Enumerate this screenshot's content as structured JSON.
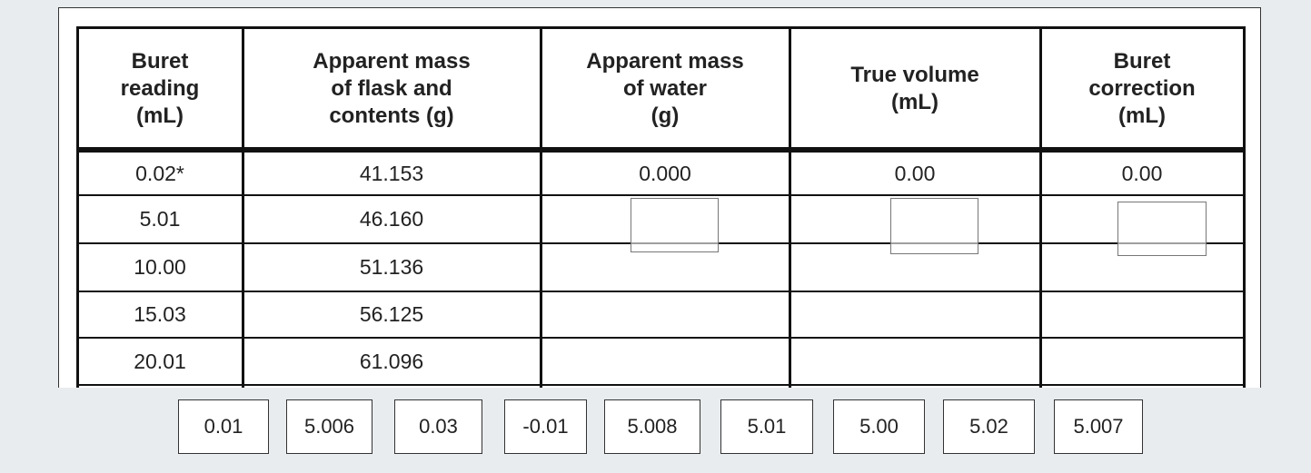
{
  "table": {
    "headers": [
      [
        "Buret",
        "reading",
        "(mL)"
      ],
      [
        "Apparent mass",
        "of flask and",
        "contents  (g)"
      ],
      [
        "Apparent mass",
        "of water",
        "(g)"
      ],
      [
        "True volume",
        "(mL)"
      ],
      [
        "Buret",
        "correction",
        "(mL)"
      ]
    ],
    "rows": [
      [
        "0.02*",
        "41.153",
        "0.000",
        "0.00",
        "0.00"
      ],
      [
        "5.01",
        "46.160"
      ],
      [
        "10.00",
        "51.136"
      ],
      [
        "15.03",
        "56.125"
      ],
      [
        "20.01",
        "61.096"
      ]
    ]
  },
  "choices": [
    "0.01",
    "5.006",
    "0.03",
    "-0.01",
    "5.008",
    "5.01",
    "5.00",
    "5.02",
    "5.007"
  ]
}
